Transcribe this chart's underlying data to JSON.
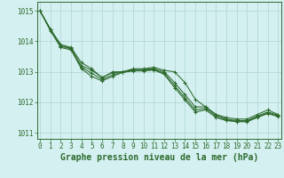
{
  "x": [
    0,
    1,
    2,
    3,
    4,
    5,
    6,
    7,
    8,
    9,
    10,
    11,
    12,
    13,
    14,
    15,
    16,
    17,
    18,
    19,
    20,
    21,
    22,
    23
  ],
  "series": [
    [
      1015.0,
      1014.4,
      1013.9,
      1013.8,
      1013.3,
      1013.1,
      1012.8,
      1013.0,
      1013.0,
      1013.1,
      1013.1,
      1013.15,
      1013.05,
      1013.0,
      1012.65,
      1012.1,
      1011.85,
      1011.6,
      1011.5,
      1011.45,
      1011.45,
      1011.6,
      1011.75,
      1011.6
    ],
    [
      1015.0,
      1014.4,
      1013.85,
      1013.75,
      1013.2,
      1013.05,
      1012.82,
      1012.97,
      1013.0,
      1013.08,
      1013.08,
      1013.1,
      1013.0,
      1012.65,
      1012.25,
      1011.85,
      1011.85,
      1011.6,
      1011.45,
      1011.4,
      1011.4,
      1011.55,
      1011.68,
      1011.58
    ],
    [
      1015.0,
      1014.4,
      1013.85,
      1013.78,
      1013.15,
      1012.95,
      1012.75,
      1012.9,
      1013.0,
      1013.05,
      1013.05,
      1013.08,
      1012.95,
      1012.55,
      1012.15,
      1011.75,
      1011.8,
      1011.55,
      1011.42,
      1011.38,
      1011.38,
      1011.52,
      1011.65,
      1011.55
    ],
    [
      1015.0,
      1014.35,
      1013.8,
      1013.72,
      1013.1,
      1012.85,
      1012.7,
      1012.85,
      1012.98,
      1013.03,
      1013.03,
      1013.06,
      1012.92,
      1012.48,
      1012.08,
      1011.68,
      1011.75,
      1011.5,
      1011.4,
      1011.36,
      1011.36,
      1011.5,
      1011.63,
      1011.53
    ]
  ],
  "line_color": "#2d6a2d",
  "marker": "+",
  "bg_color": "#d4f0f0",
  "grid_color": "#b0d4d4",
  "xlabel": "Graphe pression niveau de la mer (hPa)",
  "ylim": [
    1010.8,
    1015.3
  ],
  "xlim": [
    -0.3,
    23.3
  ],
  "yticks": [
    1011,
    1012,
    1013,
    1014,
    1015
  ],
  "xticks": [
    0,
    1,
    2,
    3,
    4,
    5,
    6,
    7,
    8,
    9,
    10,
    11,
    12,
    13,
    14,
    15,
    16,
    17,
    18,
    19,
    20,
    21,
    22,
    23
  ],
  "xlabel_fontsize": 7,
  "tick_fontsize": 5.5
}
